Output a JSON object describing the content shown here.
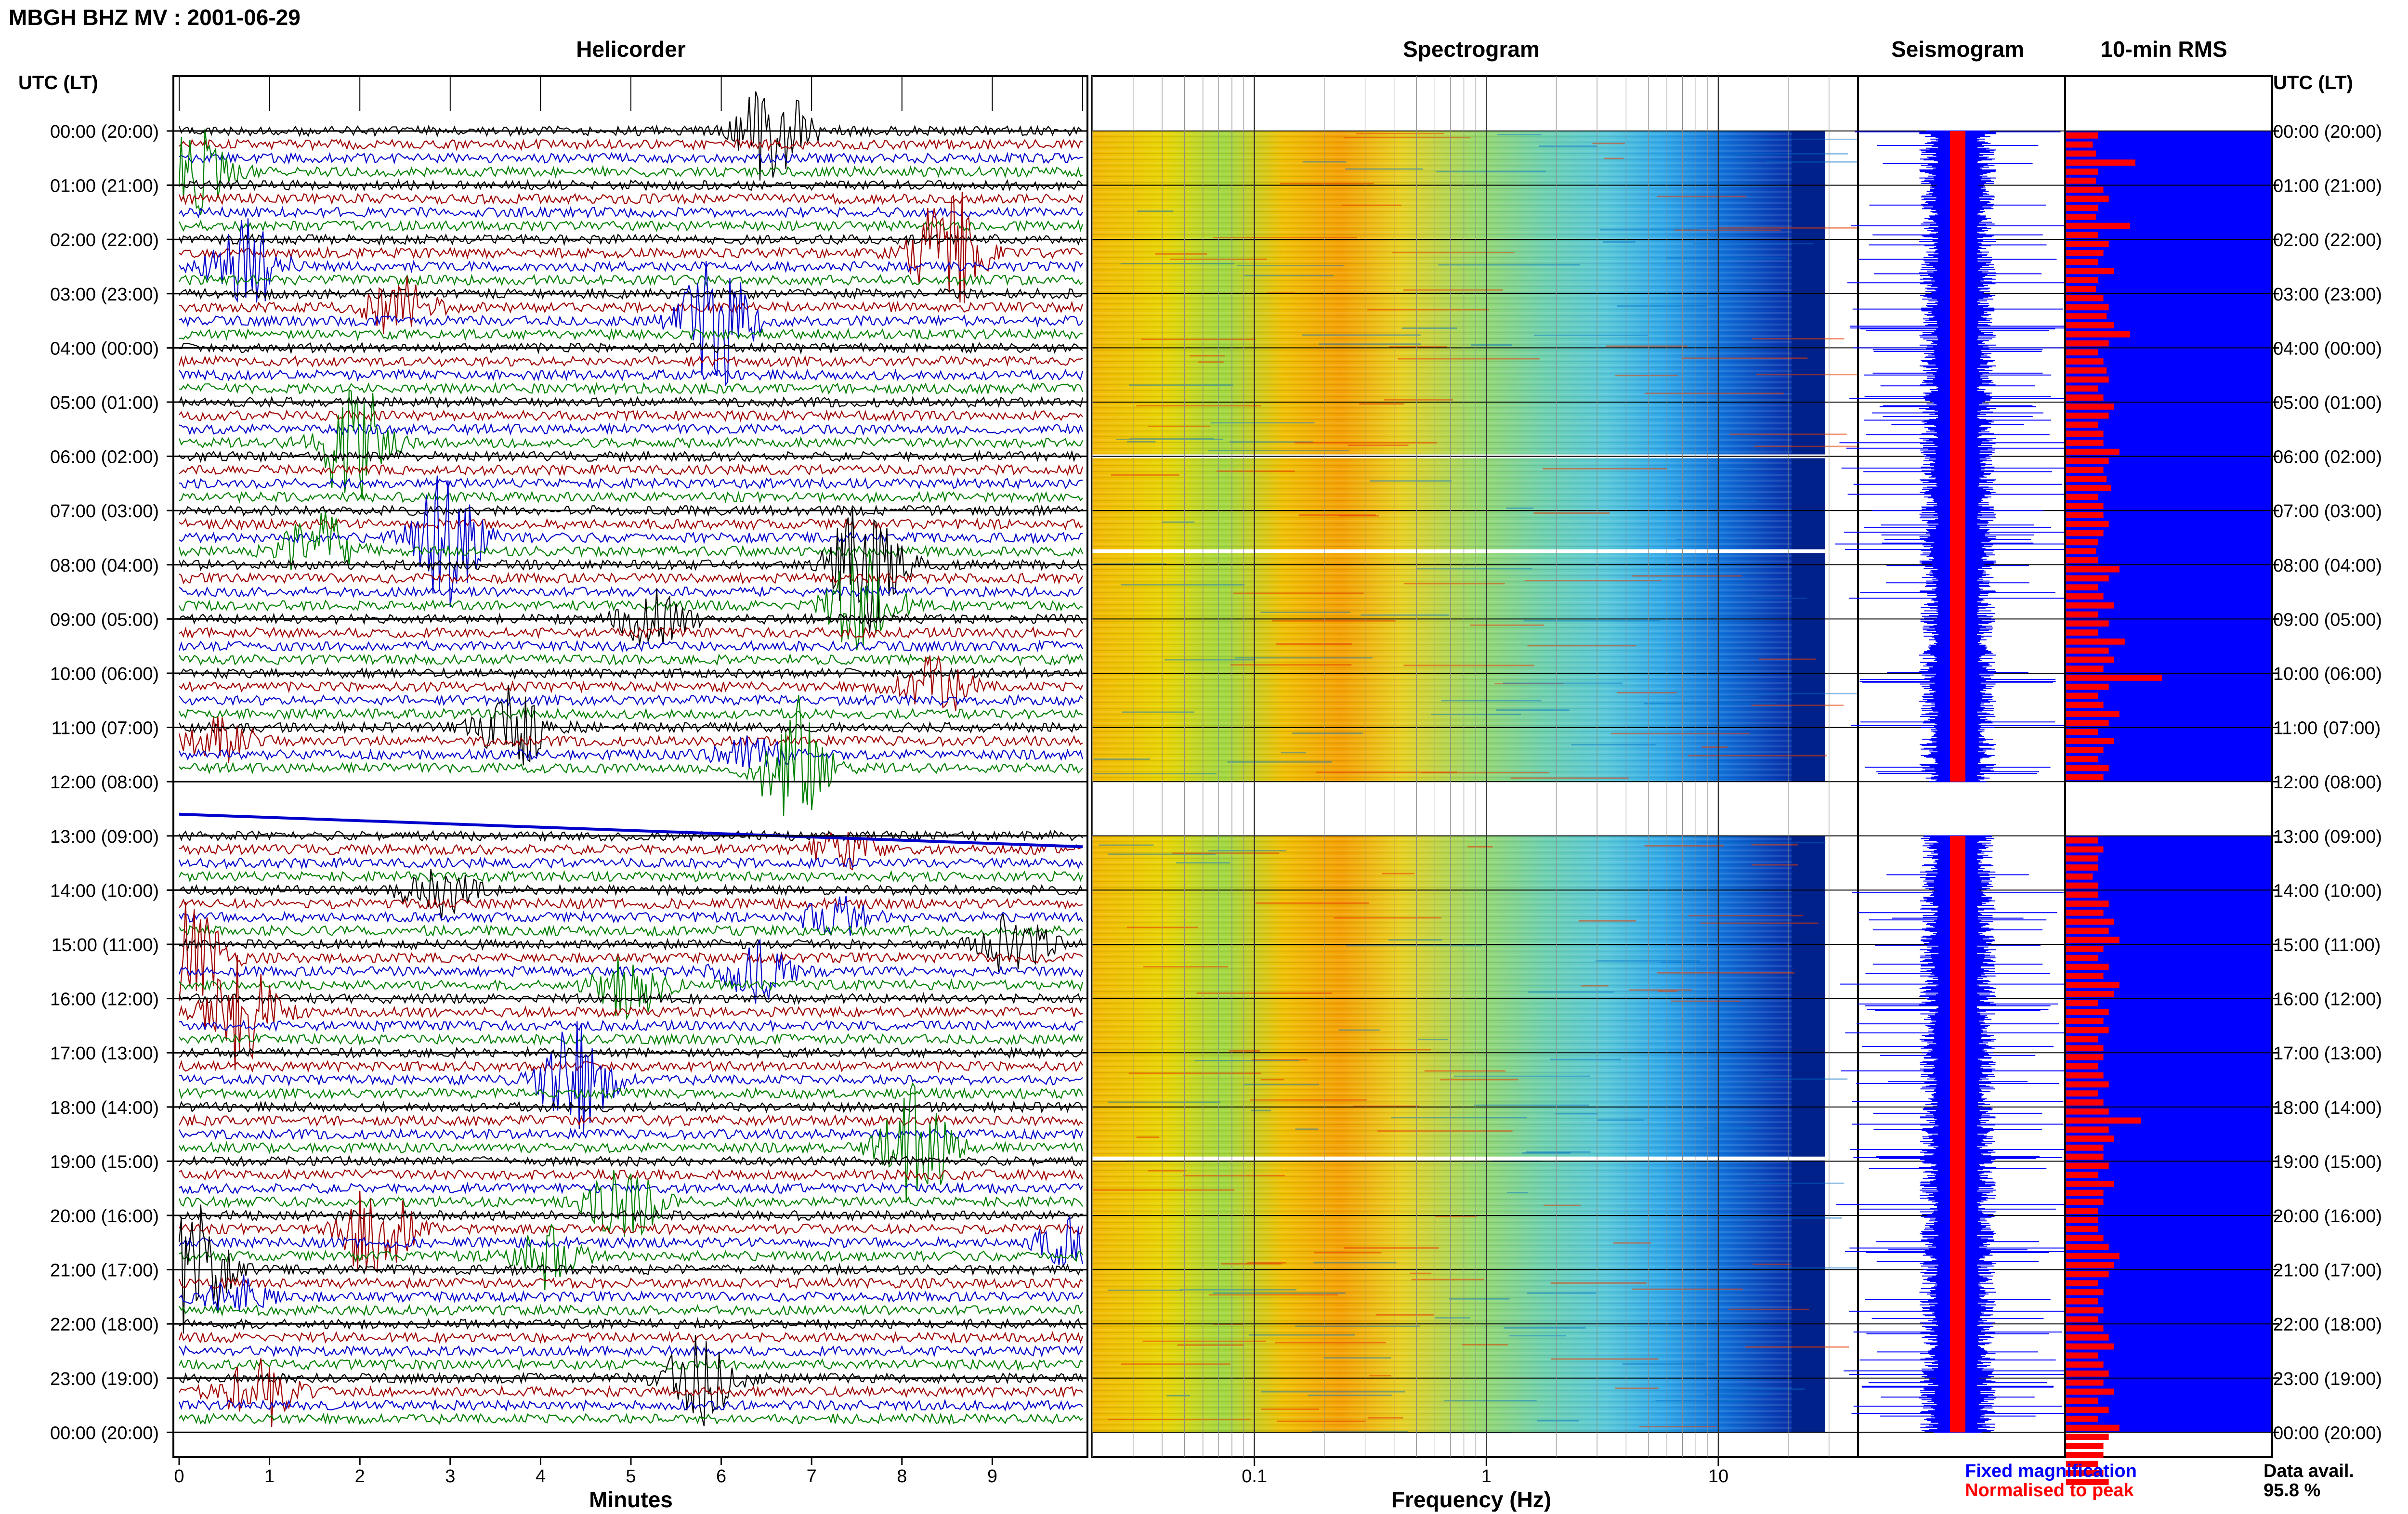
{
  "page_title": "MBGH BHZ MV : 2001-06-29",
  "panels": {
    "helicorder": "Helicorder",
    "spectrogram": "Spectrogram",
    "seismogram": "Seismogram",
    "rms": "10-min RMS"
  },
  "time_axis_label": "UTC (LT)",
  "time_labels": [
    "00:00 (20:00)",
    "01:00 (21:00)",
    "02:00 (22:00)",
    "03:00 (23:00)",
    "04:00 (00:00)",
    "05:00 (01:00)",
    "06:00 (02:00)",
    "07:00 (03:00)",
    "08:00 (04:00)",
    "09:00 (05:00)",
    "10:00 (06:00)",
    "11:00 (07:00)",
    "12:00 (08:00)",
    "13:00 (09:00)",
    "14:00 (10:00)",
    "15:00 (11:00)",
    "16:00 (12:00)",
    "17:00 (13:00)",
    "18:00 (14:00)",
    "19:00 (15:00)",
    "20:00 (16:00)",
    "21:00 (17:00)",
    "22:00 (18:00)",
    "23:00 (19:00)",
    "00:00 (20:00)"
  ],
  "helicorder_xlabel": "Minutes",
  "minute_ticks": [
    "0",
    "1",
    "2",
    "3",
    "4",
    "5",
    "6",
    "7",
    "8",
    "9"
  ],
  "frequency_xlabel": "Frequency (Hz)",
  "frequency_ticks": [
    "0.1",
    "1",
    "10"
  ],
  "legend": {
    "fixed": "Fixed magnification",
    "normalised": "Normalised to peak"
  },
  "availability": {
    "label": "Data avail.",
    "value": "95.8 %"
  },
  "colors": {
    "trace_cycle": [
      "#000000",
      "#a00000",
      "#0000cc",
      "#008000"
    ],
    "rms_bar": "#ff0000",
    "rms_background": "#0000ff",
    "fixed_text": "#0000ff",
    "normalised_text": "#ff0000"
  },
  "chart_data": {
    "type": "heatmap",
    "title": "MBGH BHZ MV : 2001-06-29",
    "xlabel": "Minutes",
    "ylabel": "UTC (LT)",
    "xlim": [
      0,
      10
    ],
    "ylim_hours_utc": [
      0,
      24
    ],
    "data_gap_hours_utc": [
      12,
      13
    ],
    "frequency_xlim_hz": [
      0.02,
      40
    ],
    "frequency_scale": "log",
    "data_availability_percent": 95.8,
    "rms_10min_relative": [
      0.3,
      0.25,
      0.28,
      0.65,
      0.3,
      0.28,
      0.35,
      0.4,
      0.3,
      0.28,
      0.6,
      0.3,
      0.4,
      0.35,
      0.3,
      0.45,
      0.3,
      0.28,
      0.35,
      0.4,
      0.38,
      0.45,
      0.6,
      0.4,
      0.3,
      0.35,
      0.38,
      0.4,
      0.3,
      0.35,
      0.45,
      0.4,
      0.3,
      0.35,
      0.35,
      0.5,
      0.4,
      0.35,
      0.38,
      0.42,
      0.3,
      0.35,
      0.35,
      0.4,
      0.35,
      0.3,
      0.28,
      0.3,
      0.5,
      0.4,
      0.3,
      0.35,
      0.45,
      0.3,
      0.4,
      0.3,
      0.55,
      0.4,
      0.45,
      0.35,
      0.9,
      0.4,
      0.3,
      0.35,
      0.5,
      0.4,
      0.3,
      0.45,
      0.35,
      0.3,
      0.4,
      0.35,
      0.5,
      0.4,
      0.35,
      0.35,
      0.3,
      0.4,
      0.3,
      0.35,
      0.3,
      0.3,
      0.25,
      0.3,
      0.3,
      0.4,
      0.35,
      0.45,
      0.4,
      0.5,
      0.35,
      0.3,
      0.4,
      0.35,
      0.5,
      0.45,
      0.3,
      0.4,
      0.35,
      0.4,
      0.3,
      0.35,
      0.35,
      0.3,
      0.35,
      0.4,
      0.3,
      0.35,
      0.4,
      0.7,
      0.4,
      0.45,
      0.35,
      0.35,
      0.4,
      0.3,
      0.45,
      0.35,
      0.35,
      0.3,
      0.3,
      0.3,
      0.35,
      0.4,
      0.5,
      0.45,
      0.4,
      0.3,
      0.35,
      0.3,
      0.35,
      0.3,
      0.35,
      0.4,
      0.45,
      0.3,
      0.35,
      0.4,
      0.35,
      0.45,
      0.3,
      0.4,
      0.3,
      0.5,
      0.4,
      0.35,
      0.35,
      0.3,
      0.35,
      0.4
    ]
  }
}
